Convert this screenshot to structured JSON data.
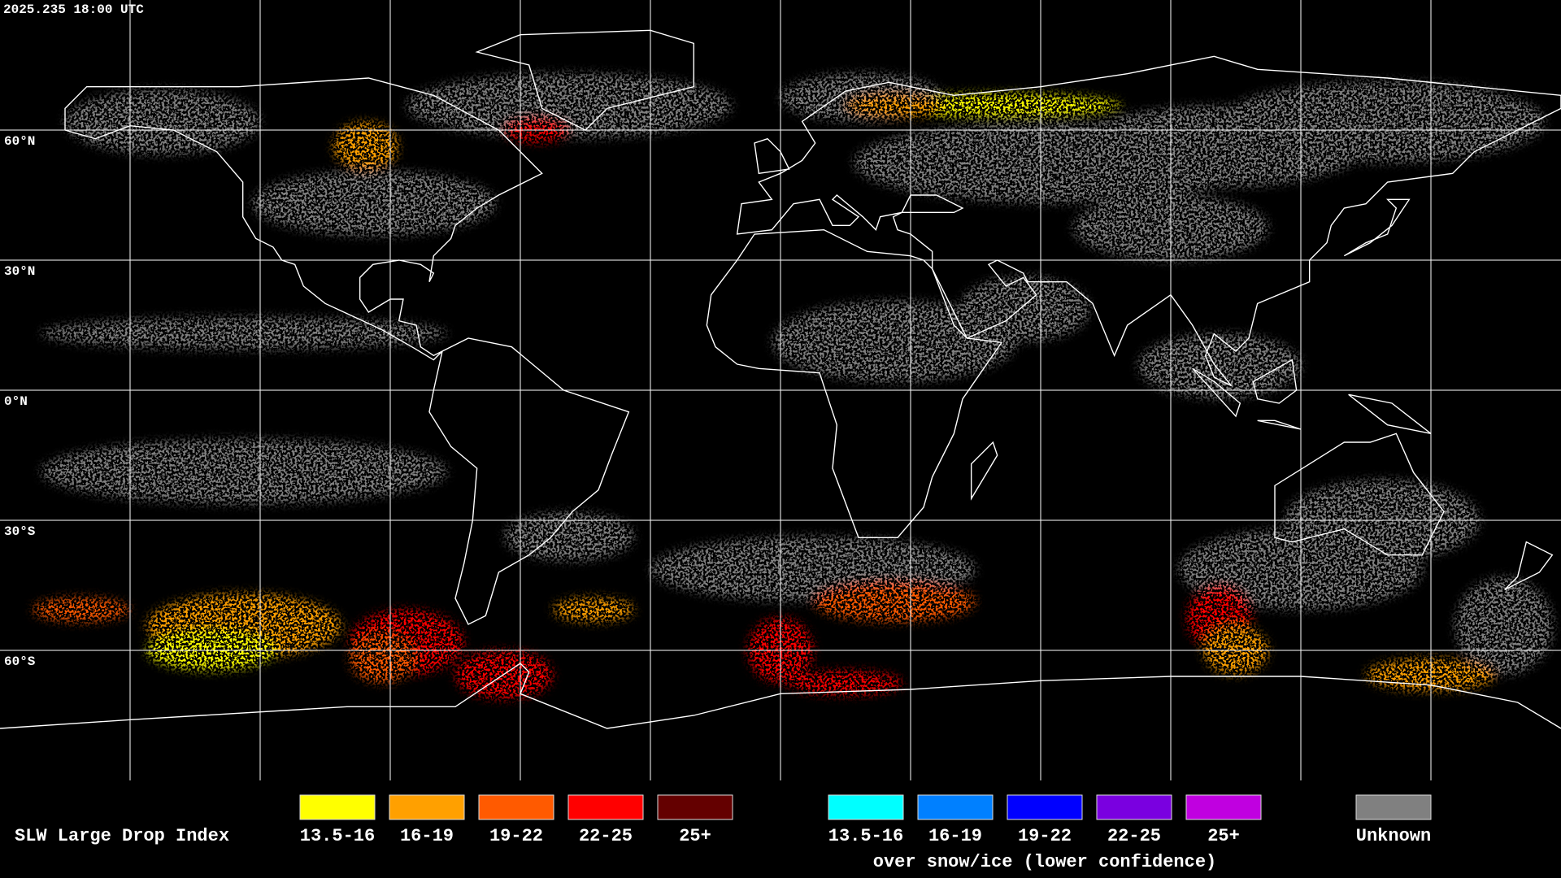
{
  "header": {
    "timestamp": "2025.235 18:00 UTC"
  },
  "map": {
    "lat_labels": [
      "60°N",
      "30°N",
      "0°N",
      "30°S",
      "60°S"
    ]
  },
  "legend": {
    "title": "SLW Large Drop Index",
    "groups": [
      {
        "items": [
          {
            "label": "13.5-16",
            "color": "#ffff00"
          },
          {
            "label": "16-19",
            "color": "#ffa000"
          },
          {
            "label": "19-22",
            "color": "#ff5a00"
          },
          {
            "label": "22-25",
            "color": "#ff0000"
          },
          {
            "label": "25+",
            "color": "#640000"
          }
        ]
      },
      {
        "items": [
          {
            "label": "13.5-16",
            "color": "#00ffff"
          },
          {
            "label": "16-19",
            "color": "#0080ff"
          },
          {
            "label": "19-22",
            "color": "#0000ff"
          },
          {
            "label": "22-25",
            "color": "#7a00e0"
          },
          {
            "label": "25+",
            "color": "#c000e0"
          }
        ],
        "caption": "over snow/ice (lower confidence)"
      },
      {
        "items": [
          {
            "label": "Unknown",
            "color": "#808080"
          }
        ]
      }
    ]
  }
}
